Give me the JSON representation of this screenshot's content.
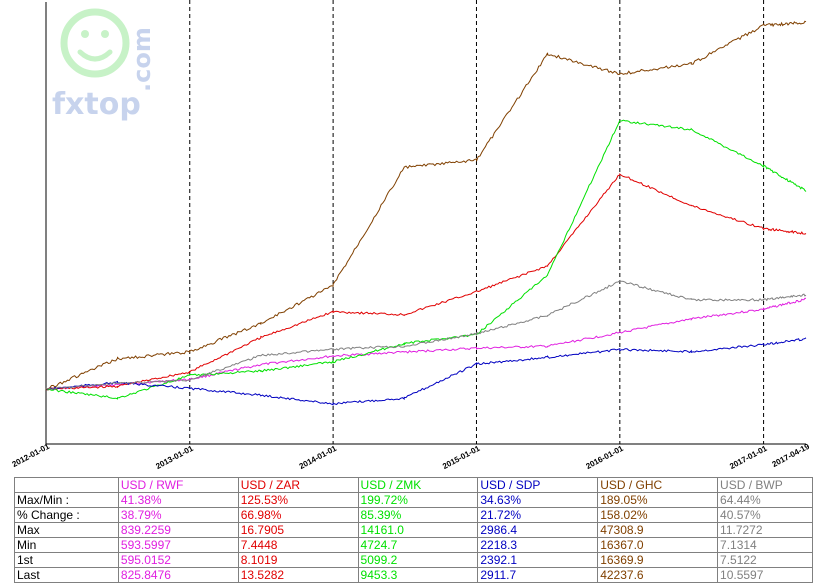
{
  "logo": {
    "text": "fxtop",
    "suffix": ".com"
  },
  "chart_data": {
    "type": "line",
    "x_tick_labels": [
      "2012-01-01",
      "2013-01-01",
      "2014-01-01",
      "2015-01-01",
      "2016-01-01",
      "2017-01-01",
      "2017-04-19"
    ],
    "grid": "vertical dashed at year boundaries",
    "series": [
      {
        "name": "USD / RWF",
        "color": "#e020e0",
        "x": [
          "2012-01-01",
          "2012-07-01",
          "2013-01-01",
          "2013-07-01",
          "2014-01-01",
          "2014-07-01",
          "2015-01-01",
          "2015-07-01",
          "2016-01-01",
          "2016-07-01",
          "2017-01-01",
          "2017-04-19"
        ],
        "values": [
          595.0,
          607,
          620,
          658,
          680,
          690,
          700,
          705,
          740,
          775,
          800,
          826
        ]
      },
      {
        "name": "USD / ZAR",
        "color": "#e00000",
        "x": [
          "2012-01-01",
          "2012-07-01",
          "2013-01-01",
          "2013-07-01",
          "2014-01-01",
          "2014-07-01",
          "2015-01-01",
          "2015-07-01",
          "2016-01-01",
          "2016-07-01",
          "2017-01-01",
          "2017-04-19"
        ],
        "values": [
          8.1,
          8.2,
          8.7,
          9.9,
          10.8,
          10.7,
          11.5,
          12.4,
          15.6,
          14.5,
          13.7,
          13.53
        ]
      },
      {
        "name": "USD / ZMK",
        "color": "#00e000",
        "x": [
          "2012-01-01",
          "2012-07-01",
          "2013-01-01",
          "2013-07-01",
          "2014-01-01",
          "2014-07-01",
          "2015-01-01",
          "2015-07-01",
          "2016-01-01",
          "2016-07-01",
          "2017-01-01",
          "2017-04-19"
        ],
        "values": [
          5099.2,
          4900,
          5400,
          5500,
          5700,
          6100,
          6300,
          7600,
          11000,
          10800,
          10000,
          9453.3
        ]
      },
      {
        "name": "USD / SDP",
        "color": "#0000c0",
        "x": [
          "2012-01-01",
          "2012-07-01",
          "2013-01-01",
          "2013-07-01",
          "2014-01-01",
          "2014-07-01",
          "2015-01-01",
          "2015-07-01",
          "2016-01-01",
          "2016-07-01",
          "2017-01-01",
          "2017-04-19"
        ],
        "values": [
          2392.1,
          2460,
          2400,
          2330,
          2240,
          2300,
          2650,
          2720,
          2800,
          2780,
          2850,
          2911.7
        ]
      },
      {
        "name": "USD / GHC",
        "color": "#804000",
        "x": [
          "2012-01-01",
          "2012-07-01",
          "2013-01-01",
          "2013-07-01",
          "2014-01-01",
          "2014-07-01",
          "2015-01-01",
          "2015-07-01",
          "2016-01-01",
          "2016-07-01",
          "2017-01-01",
          "2017-04-19"
        ],
        "values": [
          16369.9,
          18500,
          19000,
          21000,
          23700,
          32000,
          32500,
          40000,
          38600,
          39300,
          42000,
          42237.6
        ]
      },
      {
        "name": "USD / BWP",
        "color": "#808080",
        "x": [
          "2012-01-01",
          "2012-07-01",
          "2013-01-01",
          "2013-07-01",
          "2014-01-01",
          "2014-07-01",
          "2015-01-01",
          "2015-07-01",
          "2016-01-01",
          "2016-07-01",
          "2017-01-01",
          "2017-04-19"
        ],
        "values": [
          7.51,
          7.7,
          7.8,
          8.6,
          8.8,
          8.9,
          9.3,
          9.9,
          11.0,
          10.4,
          10.4,
          10.56
        ]
      }
    ]
  },
  "table": {
    "headers": [
      "",
      "USD / RWF",
      "USD / ZAR",
      "USD / ZMK",
      "USD / SDP",
      "USD / GHC",
      "USD / BWP"
    ],
    "header_colors": [
      "#000000",
      "#e020e0",
      "#e00000",
      "#00e000",
      "#0000c0",
      "#804000",
      "#808080"
    ],
    "rows": [
      {
        "label": "Max/Min :",
        "values": [
          "41.38%",
          "125.53%",
          "199.72%",
          "34.63%",
          "189.05%",
          "64.44%"
        ]
      },
      {
        "label": "% Change :",
        "values": [
          "38.79%",
          "66.98%",
          "85.39%",
          "21.72%",
          "158.02%",
          "40.57%"
        ]
      },
      {
        "label": "Max",
        "values": [
          "839.2259",
          "16.7905",
          "14161.0",
          "2986.4",
          "47308.9",
          "11.7272"
        ]
      },
      {
        "label": "Min",
        "values": [
          "593.5997",
          "7.4448",
          "4724.7",
          "2218.3",
          "16367.0",
          "7.1314"
        ]
      },
      {
        "label": "1st",
        "values": [
          "595.0152",
          "8.1019",
          "5099.2",
          "2392.1",
          "16369.9",
          "7.5122"
        ]
      },
      {
        "label": "Last",
        "values": [
          "825.8476",
          "13.5282",
          "9453.3",
          "2911.7",
          "42237.6",
          "10.5597"
        ]
      }
    ]
  }
}
